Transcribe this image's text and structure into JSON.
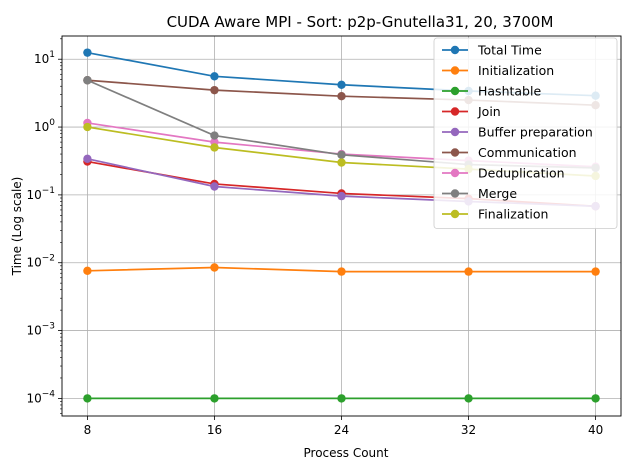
{
  "chart_data": {
    "type": "line",
    "title": "CUDA Aware MPI - Sort: p2p-Gnutella31, 20, 3700M",
    "xlabel": "Process Count",
    "ylabel": "Time (Log scale)",
    "yscale": "log",
    "x": [
      8,
      16,
      24,
      32,
      40
    ],
    "x_ticks": [
      "8",
      "16",
      "24",
      "32",
      "40"
    ],
    "xlim": [
      6.4,
      41.6
    ],
    "ylim": [
      5.5e-05,
      22
    ],
    "y_ticks": [
      {
        "value": 0.0001,
        "base": "10",
        "exp": "−4"
      },
      {
        "value": 0.001,
        "base": "10",
        "exp": "−3"
      },
      {
        "value": 0.01,
        "base": "10",
        "exp": "−2"
      },
      {
        "value": 0.1,
        "base": "10",
        "exp": "−1"
      },
      {
        "value": 1,
        "base": "10",
        "exp": "0"
      },
      {
        "value": 10,
        "base": "10",
        "exp": "1"
      }
    ],
    "grid": true,
    "legend_position": "top-right",
    "series": [
      {
        "name": "Total Time",
        "color": "#1f77b4",
        "values": [
          12.5,
          5.6,
          4.2,
          3.4,
          2.9
        ]
      },
      {
        "name": "Initialization",
        "color": "#ff7f0e",
        "values": [
          0.0076,
          0.0085,
          0.0074,
          0.0074,
          0.0074
        ]
      },
      {
        "name": "Hashtable",
        "color": "#2ca02c",
        "values": [
          0.0001,
          0.0001,
          0.0001,
          0.0001,
          0.0001
        ]
      },
      {
        "name": "Join",
        "color": "#d62728",
        "values": [
          0.31,
          0.145,
          0.105,
          0.088,
          0.068
        ]
      },
      {
        "name": "Buffer preparation",
        "color": "#9467bd",
        "values": [
          0.34,
          0.133,
          0.096,
          0.08,
          0.068
        ]
      },
      {
        "name": "Communication",
        "color": "#8c564b",
        "values": [
          4.9,
          3.5,
          2.85,
          2.5,
          2.1
        ]
      },
      {
        "name": "Deduplication",
        "color": "#e377c2",
        "values": [
          1.15,
          0.6,
          0.4,
          0.32,
          0.26
        ]
      },
      {
        "name": "Merge",
        "color": "#7f7f7f",
        "values": [
          4.9,
          0.75,
          0.39,
          0.28,
          0.25
        ]
      },
      {
        "name": "Finalization",
        "color": "#bcbd22",
        "values": [
          1.0,
          0.5,
          0.3,
          0.24,
          0.19
        ]
      }
    ]
  }
}
